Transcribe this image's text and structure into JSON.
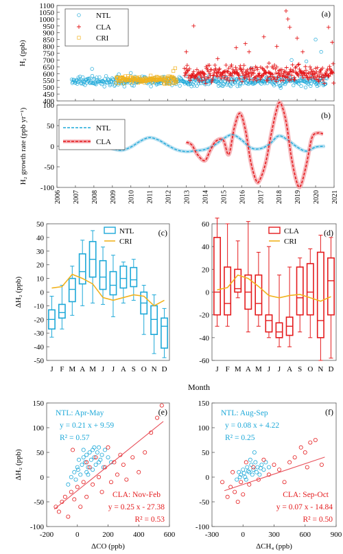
{
  "colors": {
    "ntl": "#1CA8D8",
    "cla": "#E41A1C",
    "cri": "#F2B21C",
    "fit": "#E8505A"
  },
  "chart_data": [
    {
      "id": "a",
      "panel_label": "(a)",
      "type": "scatter",
      "ylabel": "H₂ (ppb)",
      "xlim": [
        2006,
        2021
      ],
      "ylim": [
        400,
        1100
      ],
      "yticks": [
        400,
        450,
        500,
        550,
        600,
        650,
        700,
        750,
        800,
        850,
        900,
        950,
        1000,
        1050,
        1100
      ],
      "legend": {
        "placement": "top-left",
        "entries": [
          "NTL",
          "CLA",
          "CRI"
        ]
      },
      "series": [
        {
          "name": "NTL",
          "marker": "circle",
          "x_range": [
            2006.8,
            2020.6
          ],
          "mean": 545,
          "points": [
            [
              2007.9,
              635
            ],
            [
              2010.0,
              605
            ],
            [
              2016.5,
              640
            ],
            [
              2018.7,
              700
            ],
            [
              2019.5,
              690
            ],
            [
              2020.0,
              850
            ],
            [
              2020.3,
              760
            ]
          ]
        },
        {
          "name": "CLA",
          "marker": "plus",
          "x_range": [
            2012.9,
            2021.0
          ],
          "mean": 600,
          "points": [
            [
              2013.0,
              760
            ],
            [
              2013.4,
              950
            ],
            [
              2014.7,
              710
            ],
            [
              2015.7,
              790
            ],
            [
              2016.2,
              820
            ],
            [
              2016.4,
              760
            ],
            [
              2017.2,
              870
            ],
            [
              2017.9,
              800
            ],
            [
              2018.4,
              1060
            ],
            [
              2018.6,
              940
            ],
            [
              2018.5,
              1000
            ],
            [
              2019.0,
              860
            ],
            [
              2019.3,
              760
            ],
            [
              2020.7,
              940
            ],
            [
              2020.9,
              830
            ]
          ]
        },
        {
          "name": "CRI",
          "marker": "square",
          "x_range": [
            2009.2,
            2012.5
          ],
          "mean": 555,
          "points": [
            [
              2012.4,
              640
            ],
            [
              2012.3,
              620
            ]
          ]
        }
      ]
    },
    {
      "id": "b",
      "panel_label": "(b)",
      "type": "line",
      "ylabel": "H₂ growth rate (ppb yr⁻¹)",
      "xlim": [
        2006,
        2021
      ],
      "ylim": [
        -100,
        100
      ],
      "yticks": [
        -100,
        -50,
        0,
        50,
        100
      ],
      "xticks": [
        "2006",
        "2007",
        "2008",
        "2009",
        "2010",
        "2011",
        "2012",
        "2013",
        "2014",
        "2015",
        "2016",
        "2017",
        "2018",
        "2019",
        "2020",
        "2021"
      ],
      "legend": {
        "placement": "top-left",
        "entries": [
          "NTL",
          "CLA"
        ]
      },
      "series": [
        {
          "name": "NTL",
          "style": "dashed",
          "x": [
            2007.0,
            2007.5,
            2008.0,
            2008.5,
            2009.0,
            2009.5,
            2010.0,
            2010.5,
            2011.0,
            2011.5,
            2012.0,
            2012.5,
            2013.0,
            2013.5,
            2014.0,
            2014.5,
            2015.0,
            2015.5,
            2016.0,
            2016.5,
            2017.0,
            2017.5,
            2018.0,
            2018.5,
            2019.0,
            2019.5,
            2020.0,
            2020.5
          ],
          "y": [
            -3,
            5,
            10,
            4,
            -6,
            -10,
            -2,
            12,
            21,
            15,
            2,
            -9,
            -13,
            -11,
            -8,
            2,
            18,
            28,
            15,
            -4,
            -6,
            5,
            25,
            15,
            -2,
            -12,
            -2,
            0
          ]
        },
        {
          "name": "CLA",
          "style": "dashed",
          "x": [
            2013.0,
            2013.3,
            2013.6,
            2014.0,
            2014.3,
            2014.6,
            2015.0,
            2015.3,
            2015.6,
            2015.9,
            2016.2,
            2016.5,
            2016.8,
            2017.0,
            2017.3,
            2017.6,
            2017.9,
            2018.1,
            2018.4,
            2018.7,
            2019.0,
            2019.2,
            2019.5,
            2019.8,
            2020.1,
            2020.4
          ],
          "y": [
            10,
            3,
            -20,
            -35,
            -10,
            12,
            15,
            -20,
            45,
            80,
            40,
            -40,
            -85,
            -80,
            -40,
            30,
            90,
            105,
            60,
            -30,
            -90,
            -95,
            -45,
            20,
            32,
            30
          ]
        }
      ]
    },
    {
      "id": "c",
      "panel_label": "(c)",
      "type": "box",
      "ylabel": "ΔH₂ (ppb)",
      "categories": [
        "J",
        "F",
        "M",
        "A",
        "M",
        "J",
        "J",
        "A",
        "S",
        "O",
        "N",
        "D"
      ],
      "ylim": [
        -50,
        50
      ],
      "yticks": [
        -50,
        -40,
        -30,
        -20,
        -10,
        0,
        10,
        20,
        30,
        40,
        50
      ],
      "legend": {
        "placement": "top-right",
        "entries": [
          "NTL",
          "CRI"
        ]
      },
      "boxes": [
        {
          "name": "NTL",
          "min": [
            -33,
            -27,
            -17,
            -10,
            -8,
            -9,
            -18,
            -8,
            -6,
            -31,
            -45,
            -48
          ],
          "q1": [
            -27,
            -19,
            -7,
            6,
            11,
            2,
            -2,
            3,
            4,
            -16,
            -31,
            -41
          ],
          "median": [
            -20,
            -15,
            2,
            15,
            24,
            11,
            5,
            10,
            9,
            -8,
            -20,
            -25
          ],
          "q3": [
            -13,
            -9,
            10,
            28,
            37,
            23,
            15,
            19,
            18,
            0,
            -10,
            -19
          ],
          "max": [
            -3,
            5,
            19,
            38,
            45,
            33,
            27,
            22,
            24,
            5,
            -2,
            -12
          ]
        }
      ],
      "lines": [
        {
          "name": "CRI",
          "values": [
            3,
            4,
            13,
            10,
            6,
            -4,
            -6,
            -4,
            -2,
            -3,
            -10,
            -6
          ]
        }
      ]
    },
    {
      "id": "d",
      "panel_label": "(d)",
      "type": "box",
      "xlabel": "Month",
      "categories": [
        "J",
        "F",
        "M",
        "A",
        "M",
        "J",
        "J",
        "A",
        "S",
        "O",
        "N",
        "D"
      ],
      "ylim": [
        -60,
        60
      ],
      "yticks": [
        -60,
        -40,
        -20,
        0,
        20,
        40,
        60
      ],
      "legend": {
        "placement": "top-right",
        "entries": [
          "CLA",
          "CRI"
        ]
      },
      "boxes": [
        {
          "name": "CLA",
          "min": [
            -30,
            -30,
            -5,
            -35,
            -30,
            -40,
            -48,
            -48,
            -35,
            -40,
            -60,
            -58
          ],
          "q1": [
            -20,
            -20,
            0,
            -15,
            -20,
            -35,
            -40,
            -38,
            -20,
            -20,
            -40,
            -20
          ],
          "median": [
            0,
            -10,
            3,
            0,
            -10,
            -25,
            -35,
            -30,
            -5,
            0,
            -25,
            10
          ],
          "q3": [
            48,
            22,
            20,
            15,
            15,
            -20,
            -27,
            -22,
            22,
            25,
            35,
            30
          ],
          "max": [
            65,
            60,
            45,
            62,
            35,
            40,
            15,
            22,
            30,
            38,
            50,
            48
          ]
        }
      ],
      "lines": [
        {
          "name": "CRI",
          "values": [
            2,
            4,
            15,
            12,
            5,
            -3,
            -5,
            -3,
            -2,
            -5,
            -8,
            -4
          ]
        }
      ]
    },
    {
      "id": "e",
      "panel_label": "(e)",
      "type": "scatter",
      "ylabel": "ΔH₂ (ppb)",
      "xlabel": "ΔCO (ppb)",
      "xlim": [
        -200,
        600
      ],
      "ylim": [
        -100,
        150
      ],
      "xticks": [
        -200,
        0,
        200,
        400,
        600
      ],
      "yticks": [
        -100,
        -50,
        0,
        50,
        100,
        150
      ],
      "annotations": {
        "ntl": [
          "NTL: Apr-May",
          "y = 0.21 x + 9.59",
          "R² = 0.57"
        ],
        "cla": [
          "CLA: Nov-Feb",
          "y = 0.25 x - 27.38",
          "R² = 0.53"
        ]
      },
      "fit": {
        "slope": 0.25,
        "intercept": -27.38,
        "x_range": [
          -150,
          560
        ]
      },
      "series": [
        {
          "name": "NTL",
          "points": [
            [
              -60,
              -15
            ],
            [
              -40,
              0
            ],
            [
              -20,
              10
            ],
            [
              0,
              20
            ],
            [
              10,
              35
            ],
            [
              20,
              5
            ],
            [
              30,
              25
            ],
            [
              40,
              40
            ],
            [
              50,
              30
            ],
            [
              60,
              45
            ],
            [
              70,
              20
            ],
            [
              80,
              50
            ],
            [
              90,
              35
            ],
            [
              100,
              55
            ],
            [
              110,
              40
            ],
            [
              120,
              25
            ],
            [
              130,
              50
            ],
            [
              140,
              60
            ],
            [
              150,
              35
            ],
            [
              160,
              45
            ],
            [
              170,
              20
            ],
            [
              180,
              55
            ],
            [
              200,
              40
            ],
            [
              220,
              30
            ],
            [
              -10,
              -5
            ],
            [
              5,
              15
            ],
            [
              60,
              10
            ],
            [
              100,
              15
            ],
            [
              140,
              30
            ],
            [
              40,
              55
            ],
            [
              70,
              5
            ],
            [
              110,
              60
            ]
          ]
        },
        {
          "name": "CLA",
          "points": [
            [
              -140,
              -60
            ],
            [
              -120,
              -70
            ],
            [
              -100,
              -50
            ],
            [
              -80,
              -40
            ],
            [
              -60,
              -80
            ],
            [
              -40,
              -30
            ],
            [
              -20,
              -45
            ],
            [
              0,
              -20
            ],
            [
              20,
              -60
            ],
            [
              40,
              -10
            ],
            [
              60,
              -40
            ],
            [
              80,
              20
            ],
            [
              100,
              -15
            ],
            [
              120,
              40
            ],
            [
              140,
              0
            ],
            [
              160,
              -30
            ],
            [
              180,
              20
            ],
            [
              200,
              60
            ],
            [
              220,
              -10
            ],
            [
              240,
              30
            ],
            [
              260,
              5
            ],
            [
              280,
              45
            ],
            [
              300,
              25
            ],
            [
              320,
              -5
            ],
            [
              360,
              40
            ],
            [
              400,
              10
            ],
            [
              440,
              50
            ],
            [
              480,
              90
            ],
            [
              520,
              120
            ],
            [
              550,
              145
            ],
            [
              -30,
              55
            ],
            [
              60,
              30
            ]
          ]
        }
      ]
    },
    {
      "id": "f",
      "panel_label": "(f)",
      "type": "scatter",
      "xlabel": "ΔCH₄ (ppb)",
      "xlim": [
        -300,
        900
      ],
      "ylim": [
        -100,
        150
      ],
      "xticks": [
        -300,
        0,
        300,
        600,
        900
      ],
      "yticks": [
        -100,
        -50,
        0,
        50,
        100,
        150
      ],
      "annotations": {
        "ntl": [
          "NTL: Aug-Sep",
          "y = 0.08 x + 4.22",
          "R² = 0.25"
        ],
        "cla": [
          "CLA: Sep-Oct",
          "y = 0.07 x - 14.84",
          "R² = 0.50"
        ]
      },
      "fit": {
        "slope": 0.07,
        "intercept": -14.84,
        "x_range": [
          -180,
          790
        ]
      },
      "series": [
        {
          "name": "NTL",
          "points": [
            [
              -60,
              -5
            ],
            [
              -40,
              10
            ],
            [
              -20,
              5
            ],
            [
              0,
              15
            ],
            [
              20,
              0
            ],
            [
              40,
              20
            ],
            [
              60,
              10
            ],
            [
              80,
              25
            ],
            [
              100,
              15
            ],
            [
              120,
              30
            ],
            [
              140,
              20
            ],
            [
              160,
              5
            ],
            [
              180,
              25
            ],
            [
              200,
              15
            ],
            [
              220,
              30
            ],
            [
              -30,
              0
            ],
            [
              10,
              8
            ],
            [
              50,
              12
            ],
            [
              90,
              5
            ],
            [
              130,
              10
            ],
            [
              170,
              18
            ],
            [
              250,
              20
            ],
            [
              30,
              -5
            ],
            [
              70,
              35
            ],
            [
              110,
              50
            ]
          ]
        },
        {
          "name": "CLA",
          "points": [
            [
              -200,
              -10
            ],
            [
              -150,
              -40
            ],
            [
              -120,
              -20
            ],
            [
              -80,
              -30
            ],
            [
              -50,
              -50
            ],
            [
              -20,
              -10
            ],
            [
              0,
              -35
            ],
            [
              30,
              30
            ],
            [
              60,
              -15
            ],
            [
              100,
              20
            ],
            [
              150,
              -5
            ],
            [
              200,
              35
            ],
            [
              250,
              5
            ],
            [
              300,
              25
            ],
            [
              350,
              15
            ],
            [
              400,
              -10
            ],
            [
              450,
              30
            ],
            [
              500,
              40
            ],
            [
              560,
              60
            ],
            [
              600,
              50
            ],
            [
              620,
              20
            ],
            [
              650,
              70
            ],
            [
              700,
              75
            ],
            [
              760,
              25
            ],
            [
              -100,
              10
            ]
          ]
        }
      ]
    }
  ]
}
